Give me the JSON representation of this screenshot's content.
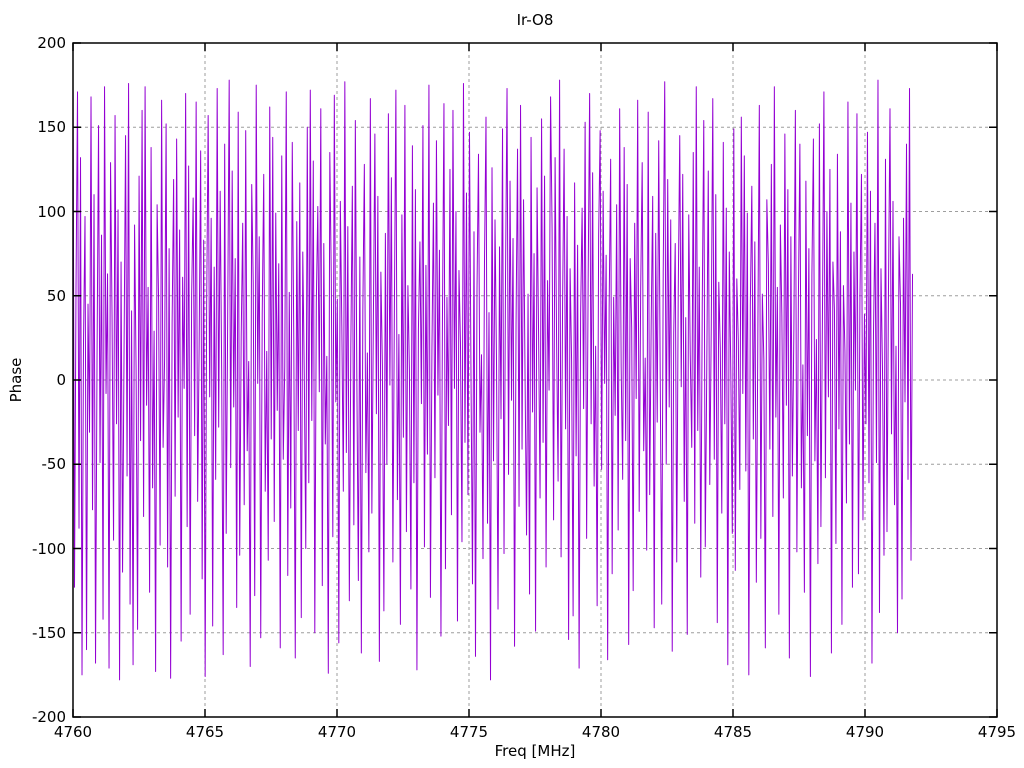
{
  "chart_data": {
    "type": "line",
    "title": "Ir-O8",
    "xlabel": "Freq [MHz]",
    "ylabel": "Phase",
    "xlim": [
      4760,
      4795
    ],
    "ylim": [
      -200,
      200
    ],
    "x_ticks": [
      4760,
      4765,
      4770,
      4775,
      4780,
      4785,
      4790,
      4795
    ],
    "y_ticks": [
      -200,
      -150,
      -100,
      -50,
      0,
      50,
      100,
      150,
      200
    ],
    "grid": true,
    "legend_position": "none",
    "colors": {
      "line": "#9400d3",
      "grid": "#9e9e9e",
      "border": "#000000",
      "background": "#ffffff",
      "text": "#000000"
    },
    "series": [
      {
        "name": "phase",
        "x_start": 4760.0,
        "x_end": 4791.8,
        "values": [
          176,
          -123,
          54,
          171,
          -88,
          132,
          -175,
          23,
          97,
          -160,
          45,
          -31,
          168,
          -77,
          110,
          -168,
          12,
          151,
          -49,
          86,
          -142,
          174,
          -8,
          63,
          -171,
          129,
          38,
          -95,
          157,
          -26,
          101,
          -178,
          70,
          -114,
          19,
          145,
          -57,
          176,
          -133,
          41,
          -169,
          92,
          7,
          -148,
          121,
          -36,
          160,
          -81,
          174,
          -15,
          55,
          -126,
          138,
          -64,
          29,
          -173,
          104,
          47,
          -98,
          166,
          -40,
          13,
          152,
          -111,
          78,
          -177,
          34,
          119,
          -69,
          143,
          -22,
          89,
          -155,
          61,
          -5,
          170,
          -87,
          127,
          -139,
          50,
          108,
          -33,
          165,
          -72,
          21,
          136,
          -118,
          83,
          -176,
          44,
          157,
          -10,
          96,
          -146,
          67,
          -59,
          173,
          -28,
          112,
          5,
          -163,
          140,
          -91,
          37,
          178,
          -52,
          124,
          -16,
          72,
          -135,
          159,
          -104,
          26,
          93,
          -74,
          148,
          -42,
          11,
          -170,
          116,
          58,
          -128,
          175,
          -2,
          85,
          -153,
          39,
          122,
          -66,
          17,
          -107,
          162,
          -35,
          144,
          -84,
          99,
          -18,
          69,
          -159,
          133,
          -47,
          8,
          171,
          -116,
          52,
          -76,
          141,
          25,
          -165,
          94,
          -30,
          117,
          -141,
          76,
          3,
          -100,
          150,
          -61,
          172,
          -24,
          130,
          -150,
          46,
          103,
          -7,
          161,
          -122,
          81,
          -38,
          14,
          -174,
          135,
          60,
          -93,
          169,
          -13,
          48,
          -156,
          106,
          32,
          -66,
          177,
          -43,
          91,
          -131,
          21,
          115,
          -86,
          154,
          1,
          -119,
          73,
          -162,
          42,
          128,
          -55,
          16,
          -102,
          167,
          -79,
          35,
          146,
          -20,
          109,
          -167,
          64,
          9,
          -137,
          87,
          -50,
          158,
          -3,
          120,
          -108,
          43,
          172,
          -71,
          27,
          -145,
          98,
          -34,
          163,
          -90,
          56,
          6,
          -124,
          139,
          -61,
          113,
          -172,
          30,
          82,
          -14,
          151,
          -99,
          68,
          -44,
          175,
          -129,
          18,
          105,
          -58,
          142,
          -9,
          77,
          -152,
          36,
          164,
          -112,
          49,
          -27,
          125,
          -80,
          160,
          -5,
          100,
          -143,
          65,
          22,
          -96,
          176,
          -37,
          111,
          -68,
          147,
          4,
          -121,
          88,
          -164,
          53,
          134,
          -31,
          15,
          -106,
          71,
          156,
          -85,
          40,
          -178,
          126,
          -48,
          95,
          10,
          -136,
          79,
          -23,
          149,
          -103,
          62,
          173,
          -56,
          118,
          -12,
          84,
          -158,
          33,
          137,
          -75,
          163,
          -41,
          107,
          2,
          -92,
          51,
          -127,
          144,
          -19,
          75,
          -149,
          114,
          28,
          -70,
          155,
          -37,
          121,
          -111,
          59,
          -6,
          168,
          90,
          -83,
          132,
          24,
          -60,
          178,
          -105,
          46,
          137,
          -29,
          97,
          -154,
          66,
          11,
          -140,
          117,
          -45,
          80,
          -171,
          39,
          102,
          -17,
          153,
          -94,
          57,
          170,
          -26,
          123,
          -63,
          20,
          -134,
          86,
          148,
          -53,
          112,
          -2,
          74,
          -166,
          43,
          131,
          -115,
          49,
          -21,
          104,
          -89,
          161,
          8,
          -59,
          138,
          -36,
          116,
          -157,
          72,
          31,
          -125,
          93,
          -11,
          166,
          -78,
          54,
          129,
          -42,
          13,
          -101,
          159,
          -68,
          34,
          109,
          -147,
          87,
          -25,
          142,
          3,
          -133,
          64,
          177,
          -50,
          119,
          -16,
          95,
          -161,
          28,
          81,
          -108,
          52,
          145,
          -4,
          122,
          -72,
          37,
          -151,
          98,
          15,
          -40,
          135,
          -85,
          174,
          -30,
          67,
          -117,
          45,
          154,
          -99,
          7,
          124,
          -62,
          32,
          167,
          -47,
          110,
          -144,
          58,
          19,
          -79,
          141,
          -26,
          102,
          -169,
          76,
          5,
          -91,
          149,
          -113,
          60,
          23,
          -65,
          156,
          -8,
          133,
          -54,
          99,
          -175,
          44,
          115,
          -35,
          82,
          -120,
          26,
          163,
          -94,
          51,
          12,
          -159,
          107,
          69,
          -41,
          128,
          -81,
          174,
          -22,
          55,
          -139,
          92,
          38,
          -70,
          146,
          -15,
          113,
          -165,
          85,
          -57,
          30,
          160,
          -102,
          47,
          140,
          -64,
          9,
          -126,
          118,
          -33,
          78,
          -176,
          62,
          143,
          -48,
          24,
          -109,
          152,
          -87,
          35,
          171,
          -58,
          100,
          -10,
          125,
          -162,
          70,
          42,
          -97,
          134,
          -29,
          88,
          -145,
          56,
          17,
          -73,
          165,
          -38,
          105,
          -123,
          76,
          -6,
          158,
          -115,
          50,
          122,
          -83,
          39,
          -26,
          147,
          -61,
          112,
          -168,
          27,
          93,
          -49,
          178,
          -138,
          66,
          7,
          -104,
          131,
          -90,
          54,
          161,
          -32,
          106,
          -74,
          20,
          -150,
          85,
          45,
          -130,
          96,
          -13,
          140,
          -59,
          173,
          -107,
          63
        ]
      }
    ]
  }
}
